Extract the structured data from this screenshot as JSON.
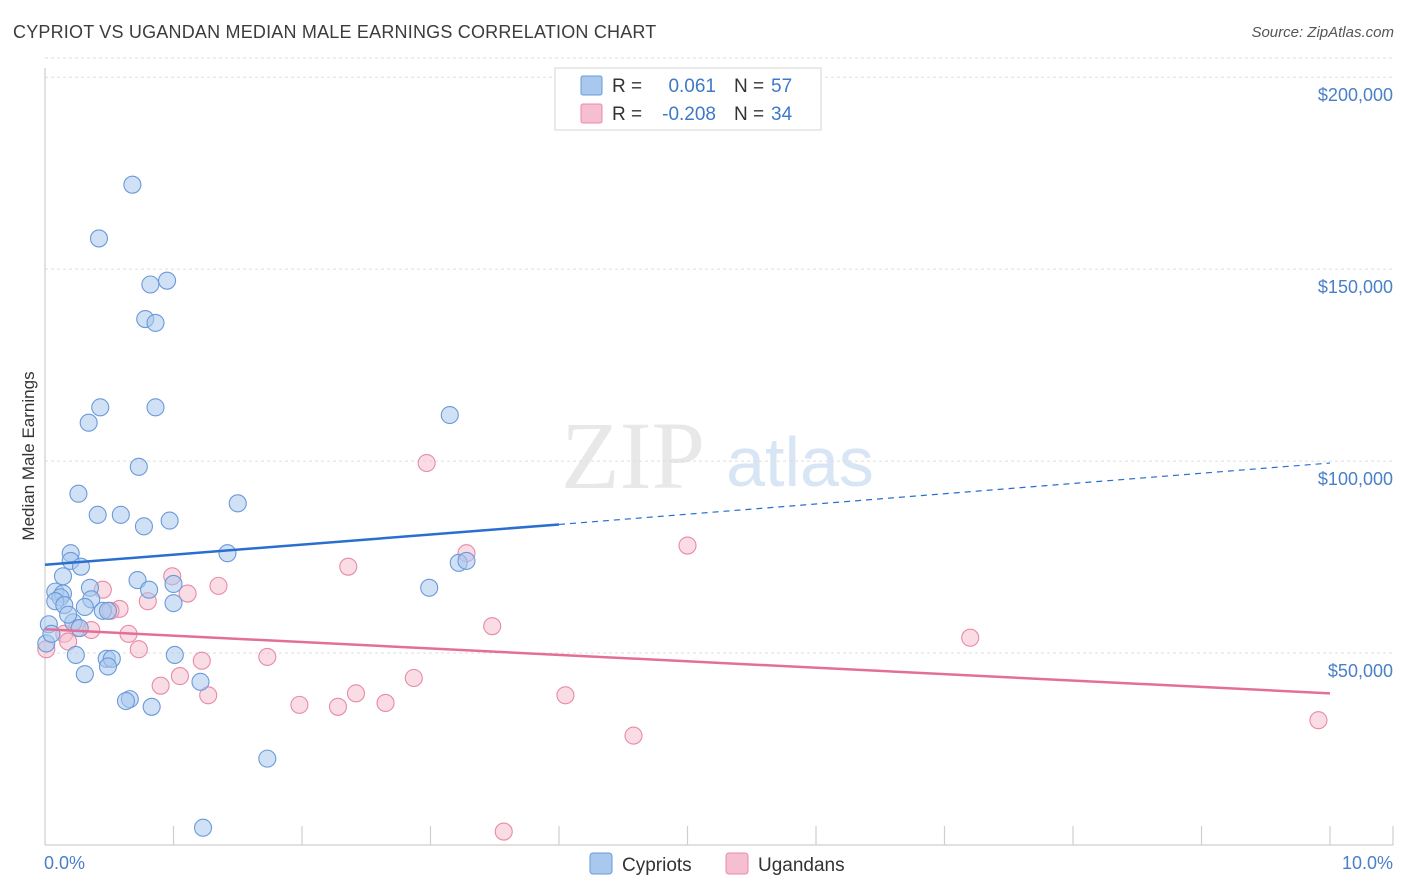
{
  "header": {
    "title": "CYPRIOT VS UGANDAN MEDIAN MALE EARNINGS CORRELATION CHART",
    "source": "Source: ZipAtlas.com"
  },
  "watermark": {
    "zip": "ZIP",
    "atlas": "atlas"
  },
  "colors": {
    "cypriot_fill": "#a9c8ee",
    "cypriot_stroke": "#6a9ad8",
    "cypriot_line": "#2a6fcf",
    "ugandan_fill": "#f5bfd0",
    "ugandan_stroke": "#e88aa8",
    "ugandan_line": "#e36f97",
    "accent_text": "#3f78c9"
  },
  "legend": {
    "rows": [
      {
        "r_label": "R =",
        "r_value": "0.061",
        "n_label": "N =",
        "n_value": "57"
      },
      {
        "r_label": "R =",
        "r_value": "-0.208",
        "n_label": "N =",
        "n_value": "34"
      }
    ]
  },
  "bottom_legend": {
    "items": [
      "Cypriots",
      "Ugandans"
    ]
  },
  "chart_data": {
    "type": "scatter",
    "title": "CYPRIOT VS UGANDAN MEDIAN MALE EARNINGS CORRELATION CHART",
    "xlabel": "",
    "ylabel": "Median Male Earnings",
    "xlim": [
      0,
      10
    ],
    "ylim": [
      0,
      205000
    ],
    "x_tick_labels": [
      "0.0%",
      "10.0%"
    ],
    "y_ticks": [
      50000,
      100000,
      150000,
      200000
    ],
    "y_tick_labels": [
      "$50,000",
      "$100,000",
      "$150,000",
      "$200,000"
    ],
    "series": [
      {
        "name": "Cypriots",
        "r": 0.061,
        "n": 57,
        "trend": {
          "x0": 0.0,
          "y0": 73000,
          "x_solid_end": 4.0,
          "y_solid_end": 83500,
          "x1": 10.0,
          "y1": 99500
        },
        "points": [
          [
            0.68,
            172000
          ],
          [
            0.42,
            158000
          ],
          [
            0.82,
            146000
          ],
          [
            0.95,
            147000
          ],
          [
            0.78,
            137000
          ],
          [
            0.86,
            136000
          ],
          [
            0.43,
            114000
          ],
          [
            0.86,
            114000
          ],
          [
            0.34,
            110000
          ],
          [
            3.15,
            112000
          ],
          [
            0.73,
            98500
          ],
          [
            0.26,
            91500
          ],
          [
            1.5,
            89000
          ],
          [
            0.41,
            86000
          ],
          [
            0.59,
            86000
          ],
          [
            0.97,
            84500
          ],
          [
            0.77,
            83000
          ],
          [
            0.2,
            76000
          ],
          [
            1.42,
            76000
          ],
          [
            0.2,
            74000
          ],
          [
            0.28,
            72500
          ],
          [
            3.22,
            73500
          ],
          [
            3.28,
            74000
          ],
          [
            0.14,
            70000
          ],
          [
            0.72,
            69000
          ],
          [
            1.0,
            68000
          ],
          [
            0.35,
            67000
          ],
          [
            0.81,
            66500
          ],
          [
            2.99,
            67000
          ],
          [
            0.08,
            66000
          ],
          [
            0.14,
            65500
          ],
          [
            0.12,
            64500
          ],
          [
            0.36,
            64000
          ],
          [
            0.08,
            63500
          ],
          [
            0.15,
            62500
          ],
          [
            0.31,
            62000
          ],
          [
            1.0,
            63000
          ],
          [
            0.45,
            61000
          ],
          [
            0.49,
            61000
          ],
          [
            0.22,
            58000
          ],
          [
            0.03,
            57500
          ],
          [
            0.27,
            56500
          ],
          [
            0.01,
            52500
          ],
          [
            0.24,
            49500
          ],
          [
            1.01,
            49500
          ],
          [
            0.48,
            48500
          ],
          [
            0.52,
            48500
          ],
          [
            0.49,
            46500
          ],
          [
            0.31,
            44500
          ],
          [
            1.21,
            42500
          ],
          [
            0.66,
            38000
          ],
          [
            0.63,
            37500
          ],
          [
            0.83,
            36000
          ],
          [
            1.73,
            22500
          ],
          [
            1.23,
            4500
          ],
          [
            0.18,
            60000
          ],
          [
            0.05,
            55000
          ]
        ]
      },
      {
        "name": "Ugandans",
        "r": -0.208,
        "n": 34,
        "trend": {
          "x0": 0.0,
          "y0": 56200,
          "x1": 10.0,
          "y1": 39500
        },
        "points": [
          [
            2.97,
            99500
          ],
          [
            5.0,
            78000
          ],
          [
            3.28,
            76000
          ],
          [
            2.36,
            72500
          ],
          [
            0.99,
            70000
          ],
          [
            1.35,
            67500
          ],
          [
            0.45,
            66500
          ],
          [
            1.11,
            65500
          ],
          [
            0.8,
            63500
          ],
          [
            0.58,
            61500
          ],
          [
            0.51,
            61000
          ],
          [
            3.48,
            57000
          ],
          [
            0.25,
            56500
          ],
          [
            0.36,
            56000
          ],
          [
            0.15,
            55000
          ],
          [
            0.65,
            55000
          ],
          [
            0.18,
            53000
          ],
          [
            7.2,
            54000
          ],
          [
            0.73,
            51000
          ],
          [
            0.01,
            51000
          ],
          [
            1.73,
            49000
          ],
          [
            1.22,
            48000
          ],
          [
            1.05,
            44000
          ],
          [
            0.9,
            41500
          ],
          [
            2.87,
            43500
          ],
          [
            2.42,
            39500
          ],
          [
            1.27,
            39000
          ],
          [
            4.05,
            39000
          ],
          [
            2.65,
            37000
          ],
          [
            1.98,
            36500
          ],
          [
            2.28,
            36000
          ],
          [
            9.91,
            32500
          ],
          [
            4.58,
            28500
          ],
          [
            3.57,
            3500
          ]
        ]
      }
    ]
  }
}
